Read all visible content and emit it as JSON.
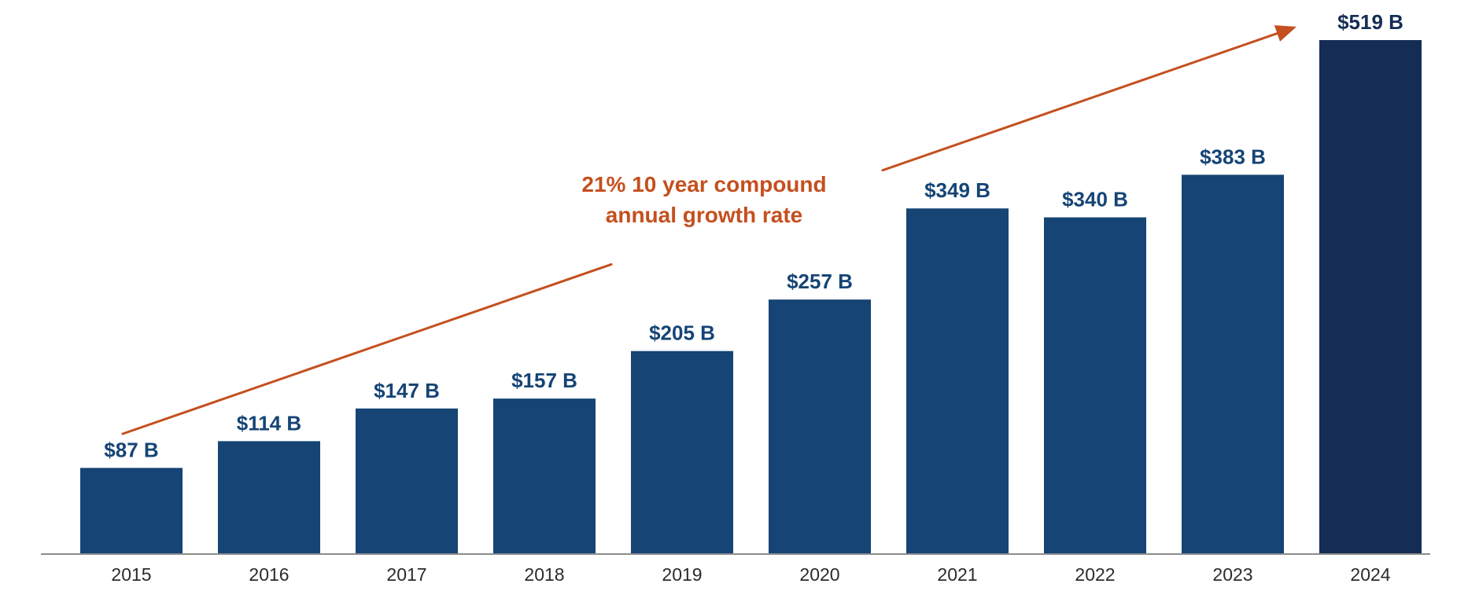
{
  "chart_data": {
    "type": "bar",
    "categories": [
      "2015",
      "2016",
      "2017",
      "2018",
      "2019",
      "2020",
      "2021",
      "2022",
      "2023",
      "2024"
    ],
    "values": [
      87,
      114,
      147,
      157,
      205,
      257,
      349,
      340,
      383,
      519
    ],
    "value_labels": [
      "$87 B",
      "$114 B",
      "$147 B",
      "$157 B",
      "$205 B",
      "$257 B",
      "$349 B",
      "$340 B",
      "$383 B",
      "$519 B"
    ],
    "title": "",
    "xlabel": "",
    "ylabel": "",
    "ylim": [
      0,
      519
    ],
    "grid": false,
    "annotation": {
      "lines": [
        "21% 10 year compound",
        "annual growth rate"
      ]
    },
    "colors": {
      "bar": "#154475",
      "highlight_bar": "#152d54",
      "highlight_index": 9,
      "label": "#154475",
      "highlight_label": "#152d54",
      "arrow": "#c4501f",
      "axis": "#8c8c8c"
    }
  }
}
